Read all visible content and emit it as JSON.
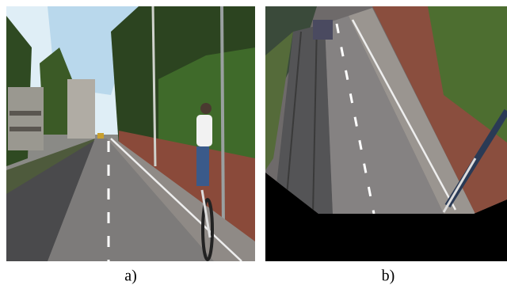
{
  "panels": [
    {
      "caption": "a)"
    },
    {
      "caption": "b)"
    }
  ]
}
